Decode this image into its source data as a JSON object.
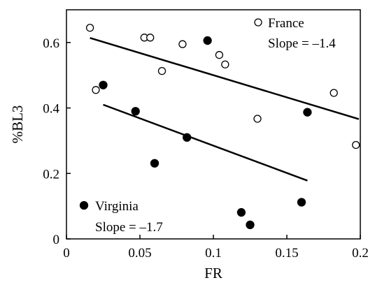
{
  "chart_data": {
    "type": "scatter",
    "xlabel": "FR",
    "ylabel": "%BL3",
    "xlim": [
      0,
      0.2
    ],
    "ylim": [
      0,
      0.7
    ],
    "x_ticks": [
      {
        "value": 0,
        "label": "0"
      },
      {
        "value": 0.05,
        "label": "0.05"
      },
      {
        "value": 0.1,
        "label": "0.1"
      },
      {
        "value": 0.15,
        "label": "0.15"
      },
      {
        "value": 0.2,
        "label": "0.2"
      }
    ],
    "y_ticks": [
      {
        "value": 0,
        "label": "0"
      },
      {
        "value": 0.2,
        "label": "0.2"
      },
      {
        "value": 0.4,
        "label": "0.4"
      },
      {
        "value": 0.6,
        "label": "0.6"
      }
    ],
    "grid": false,
    "legend_placement": "inside",
    "series": [
      {
        "name": "France",
        "marker": "open-circle",
        "slope_label": "Slope = –1.4",
        "points": [
          {
            "x": 0.016,
            "y": 0.645
          },
          {
            "x": 0.053,
            "y": 0.615
          },
          {
            "x": 0.057,
            "y": 0.615
          },
          {
            "x": 0.079,
            "y": 0.595
          },
          {
            "x": 0.104,
            "y": 0.562
          },
          {
            "x": 0.108,
            "y": 0.533
          },
          {
            "x": 0.065,
            "y": 0.513
          },
          {
            "x": 0.02,
            "y": 0.455
          },
          {
            "x": 0.182,
            "y": 0.446
          },
          {
            "x": 0.13,
            "y": 0.367
          },
          {
            "x": 0.197,
            "y": 0.287
          }
        ],
        "fit_line": [
          {
            "x": 0.016,
            "y": 0.614
          },
          {
            "x": 0.199,
            "y": 0.366
          }
        ]
      },
      {
        "name": "Virginia",
        "marker": "filled-circle",
        "slope_label": "Slope = –1.7",
        "points": [
          {
            "x": 0.096,
            "y": 0.606
          },
          {
            "x": 0.025,
            "y": 0.47
          },
          {
            "x": 0.047,
            "y": 0.39
          },
          {
            "x": 0.164,
            "y": 0.387
          },
          {
            "x": 0.082,
            "y": 0.31
          },
          {
            "x": 0.06,
            "y": 0.231
          },
          {
            "x": 0.16,
            "y": 0.112
          },
          {
            "x": 0.119,
            "y": 0.081
          },
          {
            "x": 0.125,
            "y": 0.043
          }
        ],
        "fit_line": [
          {
            "x": 0.025,
            "y": 0.41
          },
          {
            "x": 0.164,
            "y": 0.178
          }
        ]
      }
    ]
  }
}
